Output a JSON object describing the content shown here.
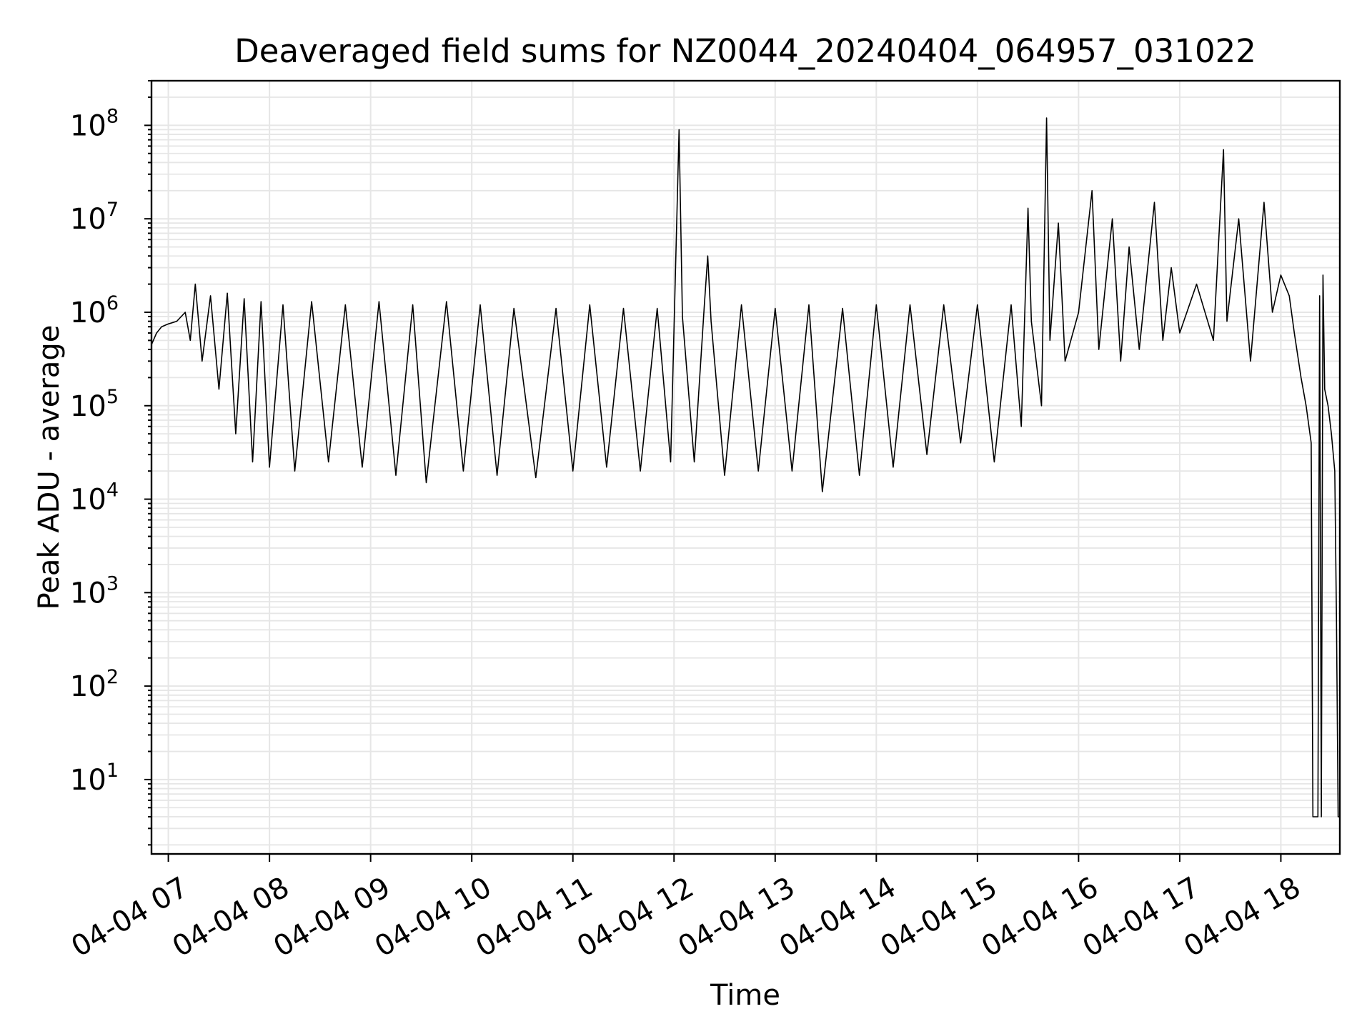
{
  "chart_data": {
    "type": "line",
    "title": "Deaveraged field sums for NZ0044_20240404_064957_031022",
    "xlabel": "Time",
    "ylabel": "Peak ADU - average",
    "yscale": "log",
    "grid": true,
    "xlim": [
      "2024-04-04T06:50",
      "2024-04-04T18:35"
    ],
    "ylim": [
      1.6,
      300000000
    ],
    "x_ticks": [
      "04-04 07",
      "04-04 08",
      "04-04 09",
      "04-04 10",
      "04-04 11",
      "04-04 12",
      "04-04 13",
      "04-04 14",
      "04-04 15",
      "04-04 16",
      "04-04 17",
      "04-04 18"
    ],
    "y_ticks": [
      {
        "base": "10",
        "exp": "1"
      },
      {
        "base": "10",
        "exp": "2"
      },
      {
        "base": "10",
        "exp": "3"
      },
      {
        "base": "10",
        "exp": "4"
      },
      {
        "base": "10",
        "exp": "5"
      },
      {
        "base": "10",
        "exp": "6"
      },
      {
        "base": "10",
        "exp": "7"
      },
      {
        "base": "10",
        "exp": "8"
      }
    ],
    "series": [
      {
        "color": "#000000",
        "points": [
          [
            "2024-04-04T06:50",
            450000
          ],
          [
            "2024-04-04T06:53",
            600000
          ],
          [
            "2024-04-04T06:56",
            700000
          ],
          [
            "2024-04-04T07:00",
            750000
          ],
          [
            "2024-04-04T07:05",
            800000
          ],
          [
            "2024-04-04T07:10",
            1000000
          ],
          [
            "2024-04-04T07:13",
            500000
          ],
          [
            "2024-04-04T07:16",
            2000000
          ],
          [
            "2024-04-04T07:20",
            300000
          ],
          [
            "2024-04-04T07:25",
            1500000
          ],
          [
            "2024-04-04T07:30",
            150000
          ],
          [
            "2024-04-04T07:35",
            1600000
          ],
          [
            "2024-04-04T07:40",
            50000
          ],
          [
            "2024-04-04T07:45",
            1400000
          ],
          [
            "2024-04-04T07:50",
            25000
          ],
          [
            "2024-04-04T07:55",
            1300000
          ],
          [
            "2024-04-04T08:00",
            22000
          ],
          [
            "2024-04-04T08:08",
            1200000
          ],
          [
            "2024-04-04T08:15",
            20000
          ],
          [
            "2024-04-04T08:25",
            1300000
          ],
          [
            "2024-04-04T08:35",
            25000
          ],
          [
            "2024-04-04T08:45",
            1200000
          ],
          [
            "2024-04-04T08:55",
            22000
          ],
          [
            "2024-04-04T09:05",
            1300000
          ],
          [
            "2024-04-04T09:15",
            18000
          ],
          [
            "2024-04-04T09:25",
            1200000
          ],
          [
            "2024-04-04T09:33",
            15000
          ],
          [
            "2024-04-04T09:45",
            1300000
          ],
          [
            "2024-04-04T09:55",
            20000
          ],
          [
            "2024-04-04T10:05",
            1200000
          ],
          [
            "2024-04-04T10:15",
            18000
          ],
          [
            "2024-04-04T10:25",
            1100000
          ],
          [
            "2024-04-04T10:38",
            17000
          ],
          [
            "2024-04-04T10:50",
            1100000
          ],
          [
            "2024-04-04T11:00",
            20000
          ],
          [
            "2024-04-04T11:10",
            1200000
          ],
          [
            "2024-04-04T11:20",
            22000
          ],
          [
            "2024-04-04T11:30",
            1100000
          ],
          [
            "2024-04-04T11:40",
            20000
          ],
          [
            "2024-04-04T11:50",
            1100000
          ],
          [
            "2024-04-04T11:58",
            25000
          ],
          [
            "2024-04-04T12:03",
            90000000
          ],
          [
            "2024-04-04T12:05",
            900000
          ],
          [
            "2024-04-04T12:12",
            25000
          ],
          [
            "2024-04-04T12:18",
            1200000
          ],
          [
            "2024-04-04T12:20",
            4000000
          ],
          [
            "2024-04-04T12:22",
            800000
          ],
          [
            "2024-04-04T12:30",
            18000
          ],
          [
            "2024-04-04T12:40",
            1200000
          ],
          [
            "2024-04-04T12:50",
            20000
          ],
          [
            "2024-04-04T13:00",
            1100000
          ],
          [
            "2024-04-04T13:10",
            20000
          ],
          [
            "2024-04-04T13:20",
            1200000
          ],
          [
            "2024-04-04T13:28",
            12000
          ],
          [
            "2024-04-04T13:40",
            1100000
          ],
          [
            "2024-04-04T13:50",
            18000
          ],
          [
            "2024-04-04T14:00",
            1200000
          ],
          [
            "2024-04-04T14:10",
            22000
          ],
          [
            "2024-04-04T14:20",
            1200000
          ],
          [
            "2024-04-04T14:30",
            30000
          ],
          [
            "2024-04-04T14:40",
            1200000
          ],
          [
            "2024-04-04T14:50",
            40000
          ],
          [
            "2024-04-04T15:00",
            1200000
          ],
          [
            "2024-04-04T15:10",
            25000
          ],
          [
            "2024-04-04T15:20",
            1200000
          ],
          [
            "2024-04-04T15:26",
            60000
          ],
          [
            "2024-04-04T15:30",
            13000000
          ],
          [
            "2024-04-04T15:32",
            800000
          ],
          [
            "2024-04-04T15:38",
            100000
          ],
          [
            "2024-04-04T15:41",
            120000000
          ],
          [
            "2024-04-04T15:43",
            500000
          ],
          [
            "2024-04-04T15:48",
            9000000
          ],
          [
            "2024-04-04T15:52",
            300000
          ],
          [
            "2024-04-04T16:00",
            1000000
          ],
          [
            "2024-04-04T16:08",
            20000000
          ],
          [
            "2024-04-04T16:12",
            400000
          ],
          [
            "2024-04-04T16:20",
            10000000
          ],
          [
            "2024-04-04T16:25",
            300000
          ],
          [
            "2024-04-04T16:30",
            5000000
          ],
          [
            "2024-04-04T16:36",
            400000
          ],
          [
            "2024-04-04T16:45",
            15000000
          ],
          [
            "2024-04-04T16:50",
            500000
          ],
          [
            "2024-04-04T16:55",
            3000000
          ],
          [
            "2024-04-04T17:00",
            600000
          ],
          [
            "2024-04-04T17:10",
            2000000
          ],
          [
            "2024-04-04T17:20",
            500000
          ],
          [
            "2024-04-04T17:26",
            55000000
          ],
          [
            "2024-04-04T17:28",
            800000
          ],
          [
            "2024-04-04T17:35",
            10000000
          ],
          [
            "2024-04-04T17:42",
            300000
          ],
          [
            "2024-04-04T17:50",
            15000000
          ],
          [
            "2024-04-04T17:55",
            1000000
          ],
          [
            "2024-04-04T18:00",
            2500000
          ],
          [
            "2024-04-04T18:05",
            1500000
          ],
          [
            "2024-04-04T18:08",
            600000
          ],
          [
            "2024-04-04T18:12",
            200000
          ],
          [
            "2024-04-04T18:15",
            100000
          ],
          [
            "2024-04-04T18:18",
            40000
          ],
          [
            "2024-04-04T18:19",
            4
          ],
          [
            "2024-04-04T18:21",
            4
          ],
          [
            "2024-04-04T18:22",
            4
          ],
          [
            "2024-04-04T18:23",
            1500000
          ],
          [
            "2024-04-04T18:24",
            4
          ],
          [
            "2024-04-04T18:25",
            2500000
          ],
          [
            "2024-04-04T18:26",
            150000
          ],
          [
            "2024-04-04T18:28",
            100000
          ],
          [
            "2024-04-04T18:30",
            50000
          ],
          [
            "2024-04-04T18:32",
            20000
          ],
          [
            "2024-04-04T18:33",
            500
          ],
          [
            "2024-04-04T18:34",
            4
          ],
          [
            "2024-04-04T18:35",
            4
          ]
        ]
      }
    ]
  }
}
